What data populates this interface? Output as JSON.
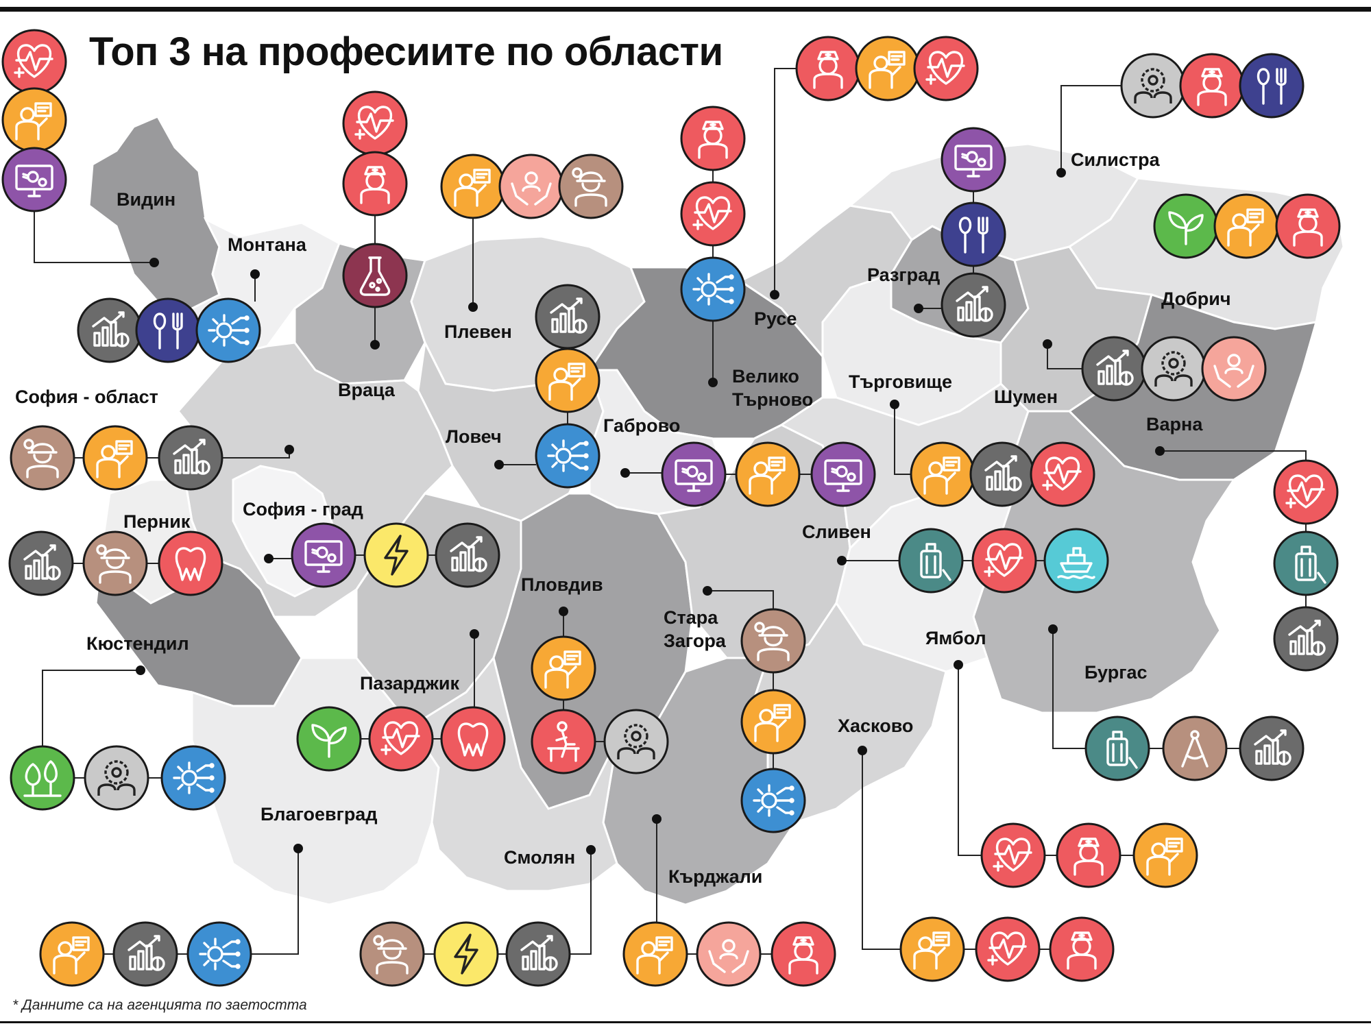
{
  "title": "Топ 3 на професиите по области",
  "footnote": "* Данните са на агенцията по заетостта",
  "colors": {
    "health": "#ee5a5f",
    "teacher": "#f7a835",
    "it": "#8e54a8",
    "engineer": "#3d8fd2",
    "cook": "#3e418f",
    "economist": "#6b6b6b",
    "lab": "#8d3550",
    "nurse": "#ee5a5f",
    "construction": "#b7907e",
    "social": "#f5a59b",
    "electric": "#fbe86a",
    "dentist": "#ee5a5f",
    "agro": "#5cb94b",
    "forest": "#5cb94b",
    "staff": "#c9c9c9",
    "tourism": "#4b8a87",
    "marine": "#56cad6",
    "architect": "#b7907e",
    "physio": "#ee5a5f"
  },
  "regions": [
    {
      "id": "vidin",
      "name": "Видин",
      "professions": [
        "health",
        "teacher",
        "it"
      ]
    },
    {
      "id": "montana",
      "name": "Монтана",
      "professions": [
        "economist",
        "cook",
        "engineer"
      ]
    },
    {
      "id": "vratsa",
      "name": "Враца",
      "professions": [
        "health",
        "nurse",
        "lab"
      ]
    },
    {
      "id": "pleven",
      "name": "Плевен",
      "professions": [
        "teacher",
        "social",
        "construction"
      ]
    },
    {
      "id": "lovech",
      "name": "Ловеч",
      "professions": [
        "economist",
        "teacher",
        "engineer"
      ]
    },
    {
      "id": "veliko",
      "name": "Велико Търново",
      "professions": [
        "nurse",
        "health",
        "engineer"
      ]
    },
    {
      "id": "ruse",
      "name": "Русе",
      "professions": [
        "nurse",
        "teacher",
        "health"
      ]
    },
    {
      "id": "silistra",
      "name": "Силистра",
      "professions": [
        "staff",
        "nurse",
        "cook"
      ]
    },
    {
      "id": "razgrad",
      "name": "Разград",
      "professions": [
        "it",
        "cook",
        "economist"
      ]
    },
    {
      "id": "dobrich",
      "name": "Добрич",
      "professions": [
        "agro",
        "teacher",
        "nurse"
      ]
    },
    {
      "id": "shumen",
      "name": "Шумен",
      "professions": [
        "economist",
        "staff",
        "social"
      ]
    },
    {
      "id": "targovishte",
      "name": "Търговище",
      "professions": [
        "teacher",
        "economist",
        "health"
      ]
    },
    {
      "id": "varna",
      "name": "Варна",
      "professions": [
        "health",
        "tourism",
        "economist"
      ]
    },
    {
      "id": "gabrovo",
      "name": "Габрово",
      "professions": [
        "it",
        "teacher",
        "it"
      ]
    },
    {
      "id": "sofia_obl",
      "name": "София - област",
      "professions": [
        "construction",
        "teacher",
        "economist"
      ]
    },
    {
      "id": "sofia_grad",
      "name": "София - град",
      "professions": [
        "it",
        "electric",
        "economist"
      ]
    },
    {
      "id": "pernik",
      "name": "Перник",
      "professions": [
        "economist",
        "construction",
        "dentist"
      ]
    },
    {
      "id": "kyustendil",
      "name": "Кюстендил",
      "professions": [
        "forest",
        "staff",
        "engineer"
      ]
    },
    {
      "id": "pazardzhik",
      "name": "Пазарджик",
      "professions": [
        "agro",
        "health",
        "dentist"
      ]
    },
    {
      "id": "plovdiv",
      "name": "Пловдив",
      "professions": [
        "teacher",
        "physio",
        "staff"
      ]
    },
    {
      "id": "stara",
      "name": "Стара Загора",
      "professions": [
        "construction",
        "teacher",
        "engineer"
      ]
    },
    {
      "id": "sliven",
      "name": "Сливен",
      "professions": [
        "tourism",
        "health",
        "marine"
      ]
    },
    {
      "id": "burgas",
      "name": "Бургас",
      "professions": [
        "tourism",
        "architect",
        "economist"
      ]
    },
    {
      "id": "yambol",
      "name": "Ямбол",
      "professions": [
        "health",
        "nurse",
        "teacher"
      ]
    },
    {
      "id": "haskovo",
      "name": "Хасково",
      "professions": [
        "teacher",
        "health",
        "nurse"
      ]
    },
    {
      "id": "kardzhali",
      "name": "Кърджали",
      "professions": [
        "teacher",
        "social",
        "nurse"
      ]
    },
    {
      "id": "smolyan",
      "name": "Смолян",
      "professions": [
        "construction",
        "electric",
        "economist"
      ]
    },
    {
      "id": "blagoevgrad",
      "name": "Благоевград",
      "professions": [
        "teacher",
        "economist",
        "engineer"
      ]
    }
  ],
  "labels": {
    "vidin": "Видин",
    "montana": "Монтана",
    "vratsa": "Враца",
    "pleven": "Плевен",
    "lovech": "Ловеч",
    "veliko1": "Велико",
    "veliko2": "Търново",
    "ruse": "Русе",
    "silistra": "Силистра",
    "razgrad": "Разград",
    "dobrich": "Добрич",
    "shumen": "Шумен",
    "targovishte": "Търговище",
    "varna": "Варна",
    "gabrovo": "Габрово",
    "sofia_obl": "София - област",
    "sofia_grad": "София - град",
    "pernik": "Перник",
    "kyustendil": "Кюстендил",
    "pazardzhik": "Пазарджик",
    "plovdiv": "Пловдив",
    "stara1": "Стара",
    "stara2": "Загора",
    "sliven": "Сливен",
    "burgas": "Бургас",
    "yambol": "Ямбол",
    "haskovo": "Хасково",
    "kardzhali": "Кърджали",
    "smolyan": "Смолян",
    "blagoevgrad": "Благоевград"
  }
}
